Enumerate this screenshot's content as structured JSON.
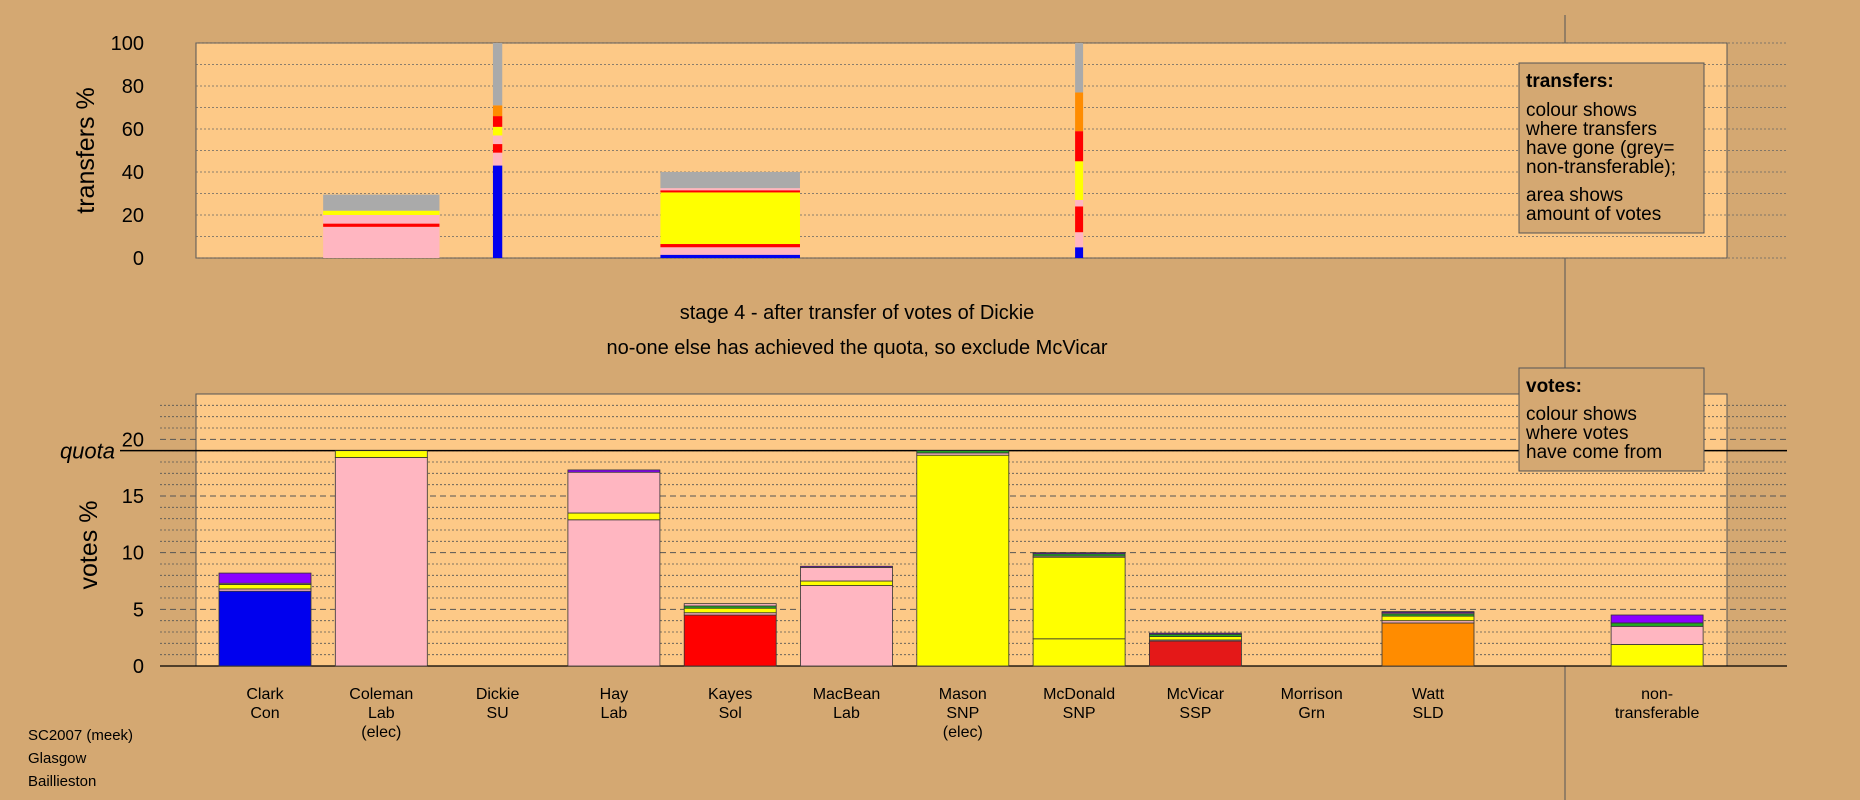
{
  "colors": {
    "background": "#d4a872",
    "plot": "#fdc987",
    "Con": "#0000ee",
    "Lab": "#ffb6c1",
    "SNP": "#ffff00",
    "Sol": "#ff0000",
    "SSP": "#e41818",
    "SLD": "#ff8c00",
    "Grn": "#22aa22",
    "SU": "#8b00ff",
    "nontransferable": "#aaaaaa"
  },
  "stage_title": "stage 4 - after transfer of votes of Dickie",
  "stage_subtitle": "no-one else has achieved the quota, so exclude McVicar",
  "footer": [
    "SC2007 (meek)",
    "Glasgow",
    "Baillieston"
  ],
  "legend_transfers": {
    "title": "transfers:",
    "lines1": [
      "colour shows",
      "where transfers",
      "have gone (grey=",
      "non-transferable);"
    ],
    "lines2": [
      "area shows",
      "amount of votes"
    ]
  },
  "legend_votes": {
    "title": "votes:",
    "lines": [
      "colour shows",
      "where votes",
      "have come from"
    ]
  },
  "chart_data": [
    {
      "type": "bar",
      "name": "transfers",
      "ylabel": "transfers %",
      "ylim": [
        0,
        100
      ],
      "yticks": [
        0,
        20,
        40,
        60,
        80,
        100
      ],
      "bars": [
        {
          "center": 1,
          "width": 1.0,
          "segments": [
            {
              "party": "Lab",
              "value": 14.5
            },
            {
              "party": "Sol",
              "value": 1.5
            },
            {
              "party": "Lab",
              "value": 4
            },
            {
              "party": "SNP",
              "value": 2
            },
            {
              "party": "nontransferable",
              "value": 7.5
            }
          ]
        },
        {
          "center": 2,
          "width": 0.08,
          "segments": [
            {
              "party": "Con",
              "value": 43
            },
            {
              "party": "Lab",
              "value": 6
            },
            {
              "party": "Sol",
              "value": 4
            },
            {
              "party": "Lab",
              "value": 4
            },
            {
              "party": "SNP",
              "value": 4
            },
            {
              "party": "Sol",
              "value": 5
            },
            {
              "party": "SLD",
              "value": 5
            },
            {
              "party": "nontransferable",
              "value": 29
            }
          ]
        },
        {
          "center": 4,
          "width": 1.2,
          "segments": [
            {
              "party": "Con",
              "value": 1.5
            },
            {
              "party": "Lab",
              "value": 3.5
            },
            {
              "party": "Sol",
              "value": 1.5
            },
            {
              "party": "SNP",
              "value": 24
            },
            {
              "party": "Sol",
              "value": 1
            },
            {
              "party": "Lab",
              "value": 1
            },
            {
              "party": "nontransferable",
              "value": 7.5
            }
          ]
        },
        {
          "center": 7,
          "width": 0.06,
          "segments": [
            {
              "party": "Con",
              "value": 5
            },
            {
              "party": "Lab",
              "value": 7
            },
            {
              "party": "Sol",
              "value": 12
            },
            {
              "party": "Lab",
              "value": 3
            },
            {
              "party": "SNP",
              "value": 18
            },
            {
              "party": "Sol",
              "value": 14
            },
            {
              "party": "SLD",
              "value": 18
            },
            {
              "party": "nontransferable",
              "value": 23
            }
          ]
        }
      ]
    },
    {
      "type": "bar",
      "name": "votes",
      "ylabel": "votes %",
      "ylim": [
        0,
        24
      ],
      "yticks": [
        0,
        5,
        10,
        15,
        20
      ],
      "quota": 19,
      "quota_label": "quota",
      "categories": [
        [
          "Clark",
          "Con"
        ],
        [
          "Coleman",
          "Lab",
          "(elec)"
        ],
        [
          "Dickie",
          "SU"
        ],
        [
          "Hay",
          "Lab"
        ],
        [
          "Kayes",
          "Sol"
        ],
        [
          "MacBean",
          "Lab"
        ],
        [
          "Mason",
          "SNP",
          "(elec)"
        ],
        [
          "McDonald",
          "SNP"
        ],
        [
          "McVicar",
          "SSP"
        ],
        [
          "Morrison",
          "Grn"
        ],
        [
          "Watt",
          "SLD"
        ],
        [
          "non-",
          "transferable"
        ]
      ],
      "bars": [
        [
          {
            "party": "Con",
            "value": 6.6
          },
          {
            "party": "Lab",
            "value": 0.2
          },
          {
            "party": "SNP",
            "value": 0.4
          },
          {
            "party": "Lab",
            "value": 0.1
          },
          {
            "party": "SU",
            "value": 0.9
          }
        ],
        [
          {
            "party": "Lab",
            "value": 18.4
          },
          {
            "party": "SNP",
            "value": 0.6
          }
        ],
        [
          {
            "party": "SU",
            "value": 0.0
          }
        ],
        [
          {
            "party": "Lab",
            "value": 12.9
          },
          {
            "party": "SNP",
            "value": 0.6
          },
          {
            "party": "Lab",
            "value": 3.6
          },
          {
            "party": "SU",
            "value": 0.2
          }
        ],
        [
          {
            "party": "Sol",
            "value": 4.5
          },
          {
            "party": "Lab",
            "value": 0.2
          },
          {
            "party": "SNP",
            "value": 0.4
          },
          {
            "party": "Grn",
            "value": 0.2
          },
          {
            "party": "Lab",
            "value": 0.2
          }
        ],
        [
          {
            "party": "Lab",
            "value": 7.1
          },
          {
            "party": "SNP",
            "value": 0.4
          },
          {
            "party": "Lab",
            "value": 1.2
          },
          {
            "party": "SU",
            "value": 0.1
          }
        ],
        [
          {
            "party": "SNP",
            "value": 18.6
          },
          {
            "party": "Lab",
            "value": 0.2
          },
          {
            "party": "Grn",
            "value": 0.2
          }
        ],
        [
          {
            "party": "SNP",
            "value": 2.4
          },
          {
            "party": "SNP",
            "value": 7.2
          },
          {
            "party": "Lab",
            "value": 0.1
          },
          {
            "party": "Grn",
            "value": 0.2
          },
          {
            "party": "SU",
            "value": 0.1
          }
        ],
        [
          {
            "party": "SSP",
            "value": 2.2
          },
          {
            "party": "Lab",
            "value": 0.1
          },
          {
            "party": "SNP",
            "value": 0.3
          },
          {
            "party": "Grn",
            "value": 0.2
          },
          {
            "party": "SU",
            "value": 0.1
          }
        ],
        [
          {
            "party": "Grn",
            "value": 0.0
          }
        ],
        [
          {
            "party": "SLD",
            "value": 3.8
          },
          {
            "party": "Lab",
            "value": 0.2
          },
          {
            "party": "SNP",
            "value": 0.4
          },
          {
            "party": "Grn",
            "value": 0.2
          },
          {
            "party": "Lab",
            "value": 0.1
          },
          {
            "party": "SU",
            "value": 0.1
          }
        ],
        [
          {
            "party": "SNP",
            "value": 1.9
          },
          {
            "party": "Lab",
            "value": 1.6
          },
          {
            "party": "Grn",
            "value": 0.3
          },
          {
            "party": "SU",
            "value": 0.7
          }
        ]
      ]
    }
  ]
}
